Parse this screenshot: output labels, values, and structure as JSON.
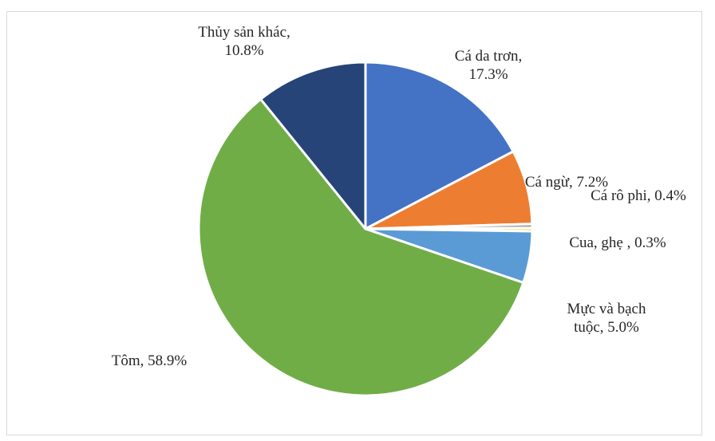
{
  "chart_data": {
    "type": "pie",
    "title": "",
    "slices": [
      {
        "label": "Cá da trơn",
        "value": 17.3,
        "color": "#4472c4"
      },
      {
        "label": "Cá ngừ",
        "value": 7.2,
        "color": "#ed7d31"
      },
      {
        "label": "Cá rô phi",
        "value": 0.4,
        "color": "#a5a5a5"
      },
      {
        "label": "Cua, ghẹ ",
        "value": 0.3,
        "color": "#ffc000"
      },
      {
        "label": "Mực và bạch tuộc",
        "value": 5.0,
        "color": "#5b9bd5"
      },
      {
        "label": "Tôm",
        "value": 58.9,
        "color": "#70ad47"
      },
      {
        "label": "Thủy sản khác",
        "value": 10.8,
        "color": "#264478"
      }
    ],
    "data_labels": [
      {
        "lines": [
          "Cá da trơn,",
          "17.3%"
        ]
      },
      {
        "lines": [
          "Cá ngừ, 7.2%"
        ]
      },
      {
        "lines": [
          "Cá rô phi, 0.4%"
        ]
      },
      {
        "lines": [
          "Cua, ghẹ , 0.3%"
        ]
      },
      {
        "lines": [
          "Mực và bạch",
          "tuộc, 5.0%"
        ]
      },
      {
        "lines": [
          "Tôm, 58.9%"
        ]
      },
      {
        "lines": [
          "Thủy sản khác,",
          "10.8%"
        ]
      }
    ],
    "legend": "none"
  }
}
